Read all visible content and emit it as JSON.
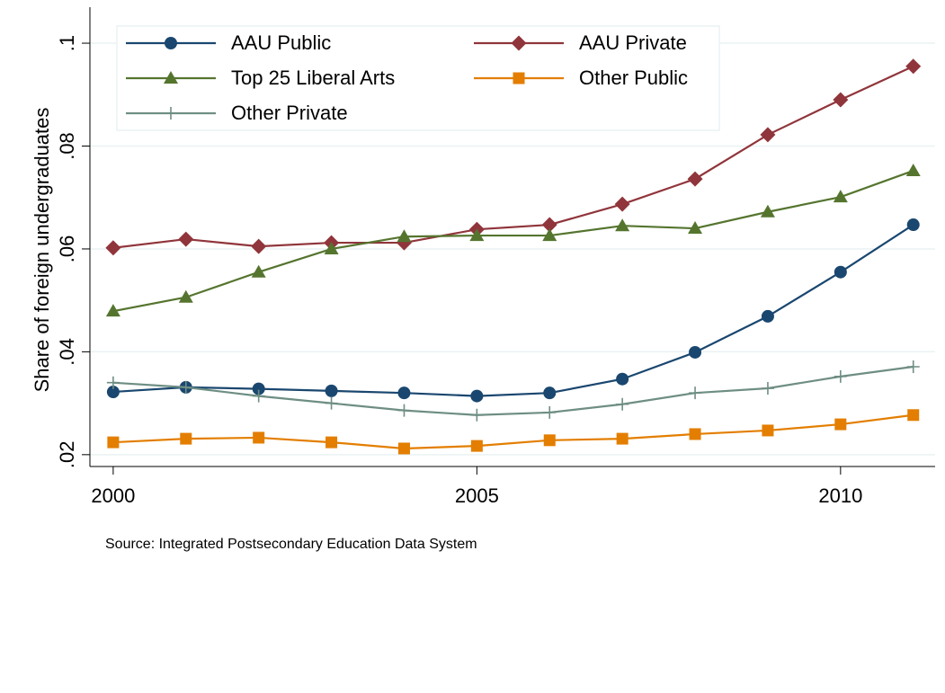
{
  "chart_data": {
    "type": "line",
    "y_label": "Share of foreign undergraduates",
    "note": "Source: Integrated Postsecondary Education Data System",
    "x": [
      2000,
      2001,
      2002,
      2003,
      2004,
      2005,
      2006,
      2007,
      2008,
      2009,
      2010,
      2011
    ],
    "xlim": [
      1999.68,
      2011.3
    ],
    "xticks": [
      2000,
      2005,
      2010
    ],
    "ylim": [
      0.0177,
      0.107
    ],
    "yticks": [
      {
        "value": 0.02,
        "label": ".02"
      },
      {
        "value": 0.04,
        "label": ".04"
      },
      {
        "value": 0.06,
        "label": ".06"
      },
      {
        "value": 0.08,
        "label": ".08"
      },
      {
        "value": 0.1,
        "label": ".1"
      }
    ],
    "grid": true,
    "legend": "top-left",
    "series": [
      {
        "name": "AAU Public",
        "color": "#1a476f",
        "marker": "circle",
        "values": [
          0.0322,
          0.0331,
          0.0328,
          0.0324,
          0.032,
          0.0314,
          0.032,
          0.0347,
          0.0399,
          0.0469,
          0.0555,
          0.0647
        ]
      },
      {
        "name": "AAU Private",
        "color": "#90353b",
        "marker": "diamond",
        "values": [
          0.0602,
          0.0619,
          0.0605,
          0.0612,
          0.0612,
          0.0638,
          0.0647,
          0.0687,
          0.0736,
          0.0822,
          0.089,
          0.0955
        ]
      },
      {
        "name": "Top 25 Liberal Arts",
        "color": "#55752f",
        "marker": "triangle",
        "values": [
          0.0479,
          0.0506,
          0.0555,
          0.06,
          0.0624,
          0.0626,
          0.0626,
          0.0645,
          0.064,
          0.0672,
          0.0701,
          0.0752
        ]
      },
      {
        "name": "Other Public",
        "color": "#e37e00",
        "marker": "square",
        "values": [
          0.0224,
          0.0231,
          0.0233,
          0.0224,
          0.0212,
          0.0217,
          0.0228,
          0.0231,
          0.024,
          0.0247,
          0.0259,
          0.0277
        ]
      },
      {
        "name": "Other Private",
        "color": "#6e8e84",
        "marker": "plus",
        "values": [
          0.034,
          0.0331,
          0.0314,
          0.03,
          0.0286,
          0.0277,
          0.0282,
          0.0298,
          0.032,
          0.0329,
          0.0352,
          0.0371
        ]
      }
    ]
  }
}
